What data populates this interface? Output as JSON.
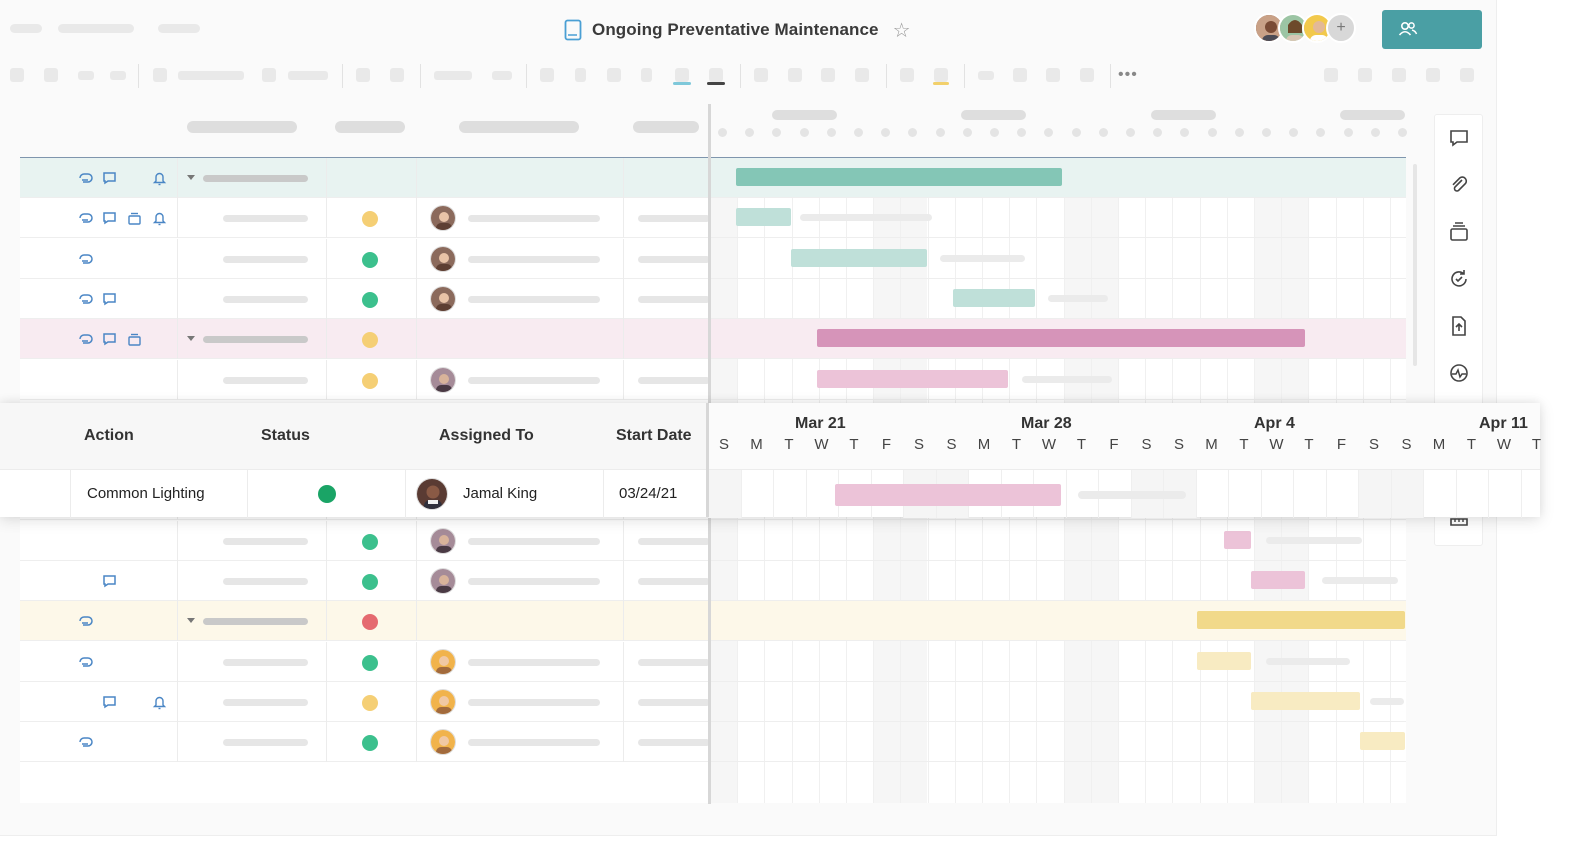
{
  "header": {
    "title": "Ongoing Preventative Maintenance",
    "star_icon": "star-outline-icon",
    "add_collaborator": "+"
  },
  "overlay": {
    "columns": [
      "Action",
      "Status",
      "Assigned To",
      "Start Date"
    ],
    "months": [
      "Mar 21",
      "Mar 28",
      "Apr 4",
      "Apr 11"
    ],
    "days": [
      "S",
      "M",
      "T",
      "W",
      "T",
      "F",
      "S",
      "S",
      "M",
      "T",
      "W",
      "T",
      "F",
      "S",
      "S",
      "M",
      "T",
      "W",
      "T",
      "F",
      "S",
      "S",
      "M",
      "T",
      "W",
      "T"
    ],
    "row": {
      "action": "Common Lighting",
      "status_color": "#1aa466",
      "assigned_to": "Jamal King",
      "start_date": "03/24/21"
    }
  },
  "colors": {
    "accent": "#4a9fa4",
    "teal_bar": "#84c6b6",
    "teal_light": "#bfe0d9",
    "pink_bar": "#d694b9",
    "pink_light": "#ecc3d8",
    "yellow_bar": "#f1d98a",
    "yellow_light": "#f8ebc2",
    "status_green": "#3cc08d",
    "status_yellow": "#f5cf75",
    "status_red": "#e56a70"
  },
  "right_panel": {
    "icons": [
      "comment-icon",
      "attachment-icon",
      "proofs-icon",
      "update-requests-icon",
      "publish-icon",
      "activity-log-icon"
    ]
  }
}
